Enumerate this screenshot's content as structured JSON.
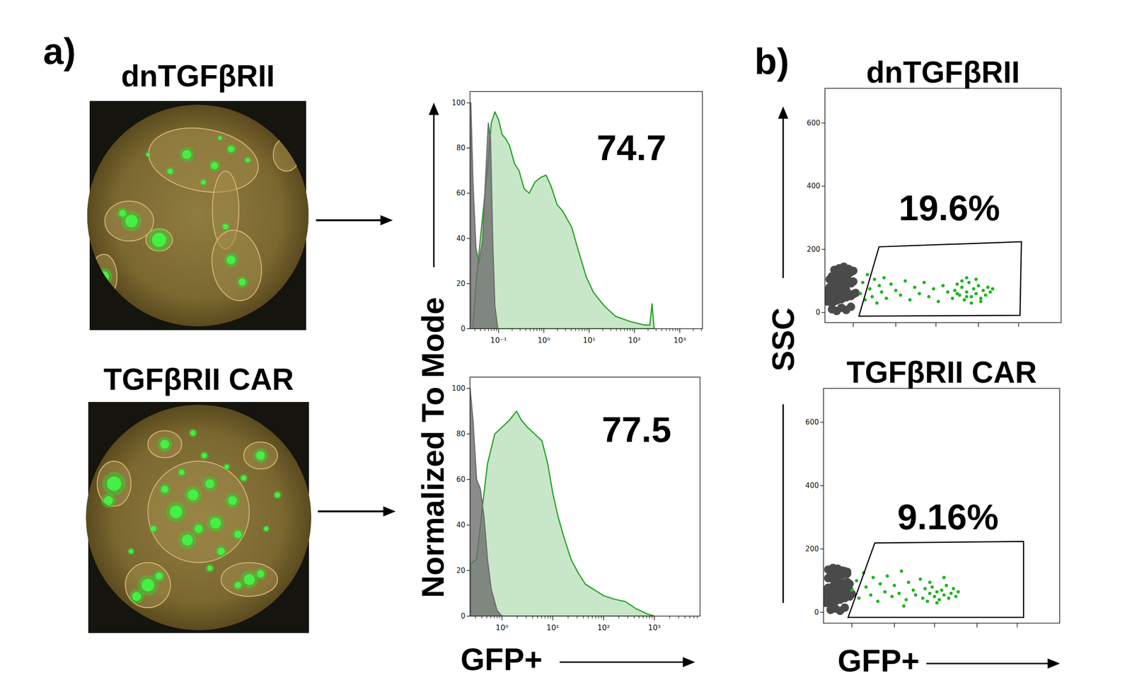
{
  "figure": {
    "panel_labels": [
      "a)",
      "b)"
    ],
    "images": [
      {
        "title": "dnTGFβRII"
      },
      {
        "title": "TGFβRII CAR"
      }
    ],
    "histogram_ylabel": "Normalized To Mode",
    "histogram_xlabel": "GFP+",
    "scatter_ylabel": "SSC",
    "scatter_xlabel": "GFP+"
  },
  "chart_data": [
    {
      "type": "area",
      "log": "x",
      "xlim": [
        0.0234,
        3160
      ],
      "ylim": [
        0,
        105
      ],
      "xticks": [
        {
          "value": 0.1,
          "label": "10⁻¹"
        },
        {
          "value": 1,
          "label": "10⁰"
        },
        {
          "value": 10,
          "label": "10¹"
        },
        {
          "value": 100,
          "label": "10²"
        },
        {
          "value": 1000,
          "label": "10³"
        }
      ],
      "yticks": [
        0,
        20,
        40,
        60,
        80,
        100
      ],
      "annotations": [
        "74.7"
      ],
      "series": [
        {
          "color": "#22a022",
          "x": [
            0.0272,
            0.0328,
            0.0441,
            0.0573,
            0.069,
            0.083,
            0.1,
            0.12,
            0.145,
            0.175,
            0.226,
            0.283,
            0.367,
            0.475,
            0.64,
            0.86,
            1.12,
            1.45,
            1.95,
            2.62,
            4.1,
            5.9,
            8.6,
            12.5,
            21.8,
            38.1,
            80,
            168,
            218,
            244,
            272
          ],
          "values": [
            1.6,
            23,
            49,
            71,
            91,
            96,
            92.5,
            86,
            84,
            81,
            73,
            70,
            62,
            60,
            65,
            67,
            68,
            63,
            55,
            52,
            45,
            34,
            23,
            16,
            10,
            5.5,
            3.2,
            1.6,
            1.6,
            11,
            0
          ]
        },
        {
          "color": "#6e6e6e",
          "x": [
            0.0244,
            0.0272,
            0.0316,
            0.0367,
            0.0441,
            0.0513,
            0.0594,
            0.0665,
            0.0743,
            0.083,
            0.0964
          ],
          "values": [
            100,
            65,
            36,
            29,
            39,
            65,
            91,
            84,
            39,
            10,
            0
          ]
        }
      ]
    },
    {
      "type": "area",
      "log": "x",
      "xlim": [
        0.234,
        7940
      ],
      "ylim": [
        0,
        105
      ],
      "xticks": [
        {
          "value": 1,
          "label": "10⁰"
        },
        {
          "value": 10,
          "label": "10¹"
        },
        {
          "value": 100,
          "label": "10²"
        },
        {
          "value": 1000,
          "label": "10³"
        }
      ],
      "yticks": [
        0,
        20,
        40,
        60,
        80,
        100
      ],
      "annotations": [
        "77.5"
      ],
      "series": [
        {
          "color": "#22a022",
          "x": [
            0.243,
            0.316,
            0.411,
            0.518,
            0.72,
            1,
            1.39,
            1.93,
            2.43,
            3.16,
            4.39,
            6.11,
            7.94,
            10,
            12.6,
            16.4,
            22.8,
            31.6,
            43.9,
            61.1,
            100,
            164,
            268,
            439,
            719,
            1000
          ],
          "values": [
            23,
            25,
            48,
            67,
            80,
            83,
            86,
            90,
            86,
            83,
            80,
            77,
            67,
            54,
            44,
            35,
            25,
            19,
            14,
            12,
            9,
            7.4,
            6.4,
            3.2,
            1,
            0
          ]
        },
        {
          "color": "#6e6e6e",
          "x": [
            0.235,
            0.268,
            0.316,
            0.373,
            0.44,
            0.518,
            0.611,
            0.794,
            1.0
          ],
          "values": [
            100,
            86,
            60,
            56,
            44,
            25,
            12,
            2.6,
            0
          ]
        }
      ]
    },
    {
      "type": "scatter",
      "title": "dnTGFβRII",
      "xlim": [
        0,
        100
      ],
      "ylim": [
        -32,
        710
      ],
      "xticks": [
        12,
        30,
        47,
        65,
        82
      ],
      "yticks": [
        0,
        200,
        400,
        600
      ],
      "tick_labels": "y",
      "marker": "circle",
      "annotations": [
        "19.6%"
      ],
      "gate": {
        "x": [
          14.4,
          22.9,
          83.2,
          82.6
        ],
        "y": [
          -11.4,
          208,
          224,
          -9
        ]
      },
      "series": [
        {
          "color": "#4a4a4a",
          "x": [
            1,
            2,
            3,
            4,
            5,
            6,
            7,
            8,
            9,
            10,
            11,
            12,
            13,
            1,
            2,
            3,
            4,
            5,
            6,
            7,
            8,
            9,
            10,
            11,
            12,
            2,
            3,
            4,
            5,
            6,
            7,
            8,
            9,
            10,
            11,
            3,
            5,
            7,
            9,
            11,
            4,
            6,
            8,
            10,
            12,
            1,
            3,
            5,
            7,
            9
          ],
          "values": [
            35,
            40,
            28,
            45,
            38,
            50,
            42,
            55,
            48,
            60,
            52,
            58,
            62,
            70,
            80,
            72,
            85,
            78,
            90,
            82,
            95,
            88,
            100,
            92,
            98,
            105,
            115,
            108,
            120,
            112,
            125,
            118,
            130,
            122,
            128,
            10,
            5,
            15,
            8,
            18,
            135,
            140,
            145,
            138,
            132,
            55,
            60,
            65,
            62,
            70
          ]
        },
        {
          "color": "#1fb51f",
          "x": [
            15,
            16,
            17,
            18,
            19,
            20,
            21,
            22,
            23,
            24,
            25,
            26,
            28,
            30,
            32,
            34,
            36,
            38,
            40,
            42,
            44,
            46,
            48,
            50,
            52,
            54,
            55,
            56,
            57,
            58,
            59,
            60,
            61,
            62,
            63,
            64,
            65,
            66,
            67,
            68,
            69,
            70,
            58,
            60,
            62,
            64,
            66,
            56,
            60,
            71
          ],
          "values": [
            60,
            95,
            40,
            120,
            75,
            50,
            105,
            30,
            85,
            65,
            110,
            45,
            90,
            70,
            55,
            100,
            40,
            80,
            60,
            95,
            50,
            75,
            35,
            85,
            65,
            45,
            70,
            90,
            55,
            80,
            40,
            65,
            95,
            50,
            75,
            60,
            85,
            45,
            70,
            55,
            80,
            65,
            100,
            110,
            30,
            105,
            35,
            60,
            50,
            75
          ]
        }
      ]
    },
    {
      "type": "scatter",
      "title": "TGFβRII CAR",
      "xlim": [
        0,
        100
      ],
      "ylim": [
        -34,
        707
      ],
      "xticks": [
        12,
        30,
        47,
        65,
        82
      ],
      "yticks": [
        0,
        200,
        400,
        600
      ],
      "tick_labels": "y",
      "marker": "circle",
      "annotations": [
        "9.16%"
      ],
      "gate": {
        "x": [
          10.4,
          21.7,
          84.7,
          84.7
        ],
        "y": [
          -16,
          219,
          224,
          -16
        ]
      },
      "series": [
        {
          "color": "#4a4a4a",
          "x": [
            1,
            2,
            3,
            4,
            5,
            6,
            7,
            8,
            9,
            10,
            11,
            12,
            1,
            2,
            3,
            4,
            5,
            6,
            7,
            8,
            9,
            10,
            11,
            2,
            3,
            4,
            5,
            6,
            7,
            8,
            9,
            10,
            3,
            5,
            7,
            9,
            2,
            4,
            6,
            8,
            10,
            1,
            3,
            5,
            7,
            9,
            11
          ],
          "values": [
            30,
            38,
            25,
            42,
            35,
            48,
            40,
            52,
            45,
            55,
            50,
            58,
            72,
            78,
            70,
            82,
            76,
            88,
            80,
            92,
            85,
            96,
            90,
            108,
            115,
            105,
            120,
            112,
            125,
            118,
            130,
            122,
            8,
            12,
            5,
            15,
            135,
            140,
            138,
            132,
            128,
            55,
            60,
            62,
            65,
            68,
            70
          ]
        },
        {
          "color": "#1fb51f",
          "x": [
            12,
            14,
            15,
            17,
            18,
            20,
            21,
            23,
            24,
            26,
            27,
            29,
            30,
            32,
            33,
            35,
            36,
            38,
            39,
            41,
            42,
            43,
            44,
            45,
            46,
            47,
            48,
            49,
            50,
            51,
            52,
            53,
            54,
            55,
            56,
            57,
            45,
            48,
            51,
            34
          ],
          "values": [
            70,
            100,
            45,
            125,
            80,
            55,
            110,
            35,
            90,
            65,
            115,
            50,
            85,
            60,
            130,
            40,
            95,
            70,
            55,
            105,
            45,
            75,
            35,
            60,
            80,
            50,
            65,
            40,
            70,
            55,
            85,
            45,
            60,
            75,
            50,
            65,
            95,
            30,
            110,
            20
          ]
        }
      ]
    }
  ]
}
